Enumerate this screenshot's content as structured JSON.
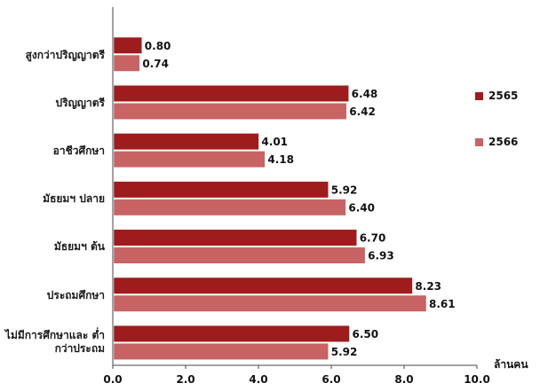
{
  "chart_data": {
    "type": "bar",
    "orientation": "horizontal",
    "categories": [
      "สูงกว่าปริญญาตรี",
      "ปริญญาตรี",
      "อาชีวศึกษา",
      "มัธยมฯ ปลาย",
      "มัธยมฯ ต้น",
      "ประถมศึกษา",
      "ไม่มีการศึกษาและ ต่ำกว่าประถม"
    ],
    "series": [
      {
        "name": "2565",
        "color": "#9e1c1c",
        "values": [
          0.8,
          6.48,
          4.01,
          5.92,
          6.7,
          8.23,
          6.5
        ],
        "labels": [
          "0.80",
          "6.48",
          "4.01",
          "5.92",
          "6.70",
          "8.23",
          "6.50"
        ]
      },
      {
        "name": "2566",
        "color": "#c86363",
        "values": [
          0.74,
          6.42,
          4.18,
          6.4,
          6.93,
          8.61,
          5.92
        ],
        "labels": [
          "0.74",
          "6.42",
          "4.18",
          "6.40",
          "6.93",
          "8.61",
          "5.92"
        ]
      }
    ],
    "xlim": [
      0,
      10
    ],
    "ticks": [
      "0.0",
      "2.0",
      "4.0",
      "6.0",
      "8.0",
      "10.0"
    ],
    "xlabel": "ล้านคน",
    "legend_position": "right",
    "grid": false
  }
}
